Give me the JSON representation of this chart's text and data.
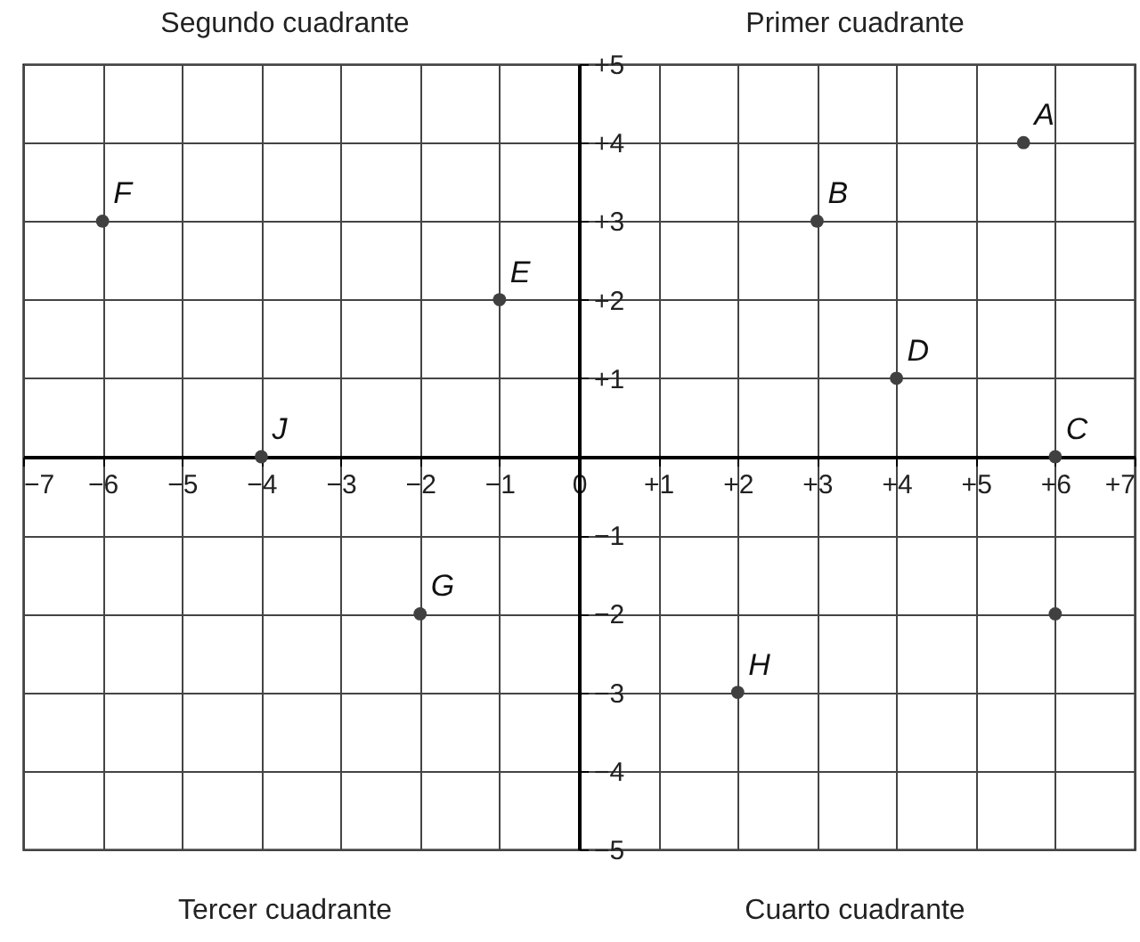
{
  "chart_data": {
    "type": "scatter",
    "color": "#404040",
    "marker": "circle",
    "grid": true,
    "x": [
      5.6,
      3,
      6,
      4,
      -1,
      -6,
      -2,
      2,
      -4,
      6
    ],
    "values": [
      4,
      3,
      0,
      1,
      2,
      3,
      -2,
      -3,
      0,
      -2
    ],
    "xlim": [
      -7,
      7
    ],
    "ylim": [
      -5,
      5
    ],
    "xticks": [
      {
        "value": -7,
        "label": "−7"
      },
      {
        "value": -6,
        "label": "−6"
      },
      {
        "value": -5,
        "label": "−5"
      },
      {
        "value": -4,
        "label": "−4"
      },
      {
        "value": -3,
        "label": "−3"
      },
      {
        "value": -2,
        "label": "−2"
      },
      {
        "value": -1,
        "label": "−1"
      },
      0,
      {
        "value": 1,
        "label": "+1"
      },
      {
        "value": 2,
        "label": "+2"
      },
      {
        "value": 3,
        "label": "+3"
      },
      {
        "value": 4,
        "label": "+4"
      },
      {
        "value": 5,
        "label": "+5"
      },
      {
        "value": 6,
        "label": "+6"
      },
      {
        "value": 7,
        "label": "+7"
      }
    ],
    "yticks": [
      {
        "value": -5,
        "label": "−5"
      },
      {
        "value": -4,
        "label": "−4"
      },
      {
        "value": -3,
        "label": "−3"
      },
      {
        "value": -2,
        "label": "−2"
      },
      {
        "value": -1,
        "label": "−1"
      },
      {
        "value": 1,
        "label": "+1"
      },
      {
        "value": 2,
        "label": "+2"
      },
      {
        "value": 3,
        "label": "+3"
      },
      {
        "value": 4,
        "label": "+4"
      },
      {
        "value": 5,
        "label": "+5"
      }
    ],
    "annotations": [
      "Segundo cuadrante",
      "Primer cuadrante",
      "Tercer cuadrante",
      "Cuarto cuadrante",
      {
        "text": "A",
        "x": 5.6,
        "y": 4
      },
      {
        "text": "B",
        "x": 3,
        "y": 3
      },
      {
        "text": "C",
        "x": 6,
        "y": 0
      },
      {
        "text": "D",
        "x": 4,
        "y": 1
      },
      {
        "text": "E",
        "x": -1,
        "y": 2
      },
      {
        "text": "F",
        "x": -6,
        "y": 3
      },
      {
        "text": "G",
        "x": -2,
        "y": -2
      },
      {
        "text": "H",
        "x": 2,
        "y": -3
      },
      {
        "text": "J",
        "x": -4,
        "y": 0
      }
    ]
  }
}
